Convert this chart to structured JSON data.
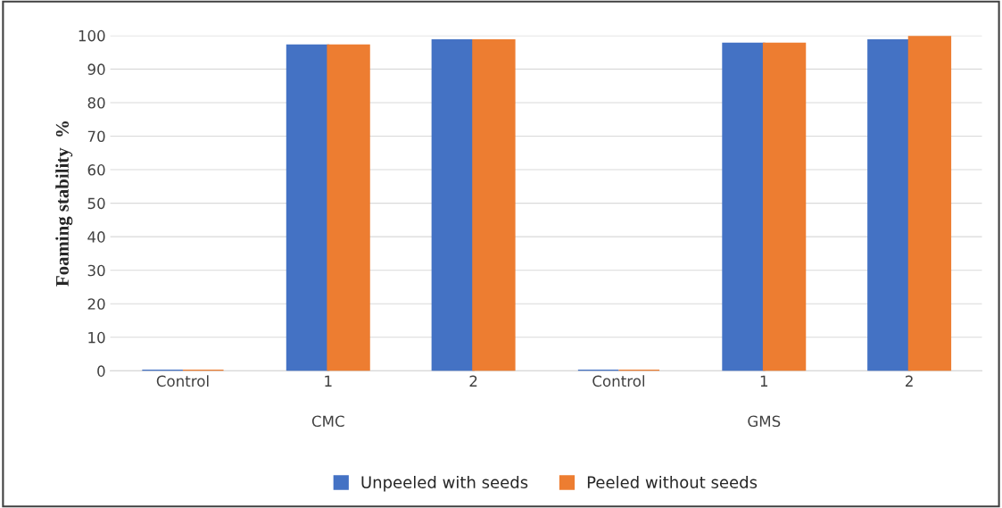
{
  "chart_data": {
    "type": "bar",
    "ylabel": "Foaming stability  %",
    "categories": [
      "Control",
      "1",
      "2",
      "Control",
      "1",
      "2"
    ],
    "annotations": [
      "CMC",
      "GMS"
    ],
    "series": [
      {
        "name": "Unpeeled with seeds",
        "color": "#4472c4",
        "values": [
          0,
          97,
          98.5,
          0,
          97.5,
          98.5
        ]
      },
      {
        "name": "Peeled without seeds",
        "color": "#ed7d31",
        "values": [
          0,
          97,
          98.5,
          0,
          97.5,
          99.5
        ]
      }
    ],
    "ylim": [
      0,
      100
    ],
    "yticks": [
      0,
      10,
      20,
      30,
      40,
      50,
      60,
      70,
      80,
      90,
      100
    ],
    "grid": "y",
    "legend": "bottom"
  }
}
